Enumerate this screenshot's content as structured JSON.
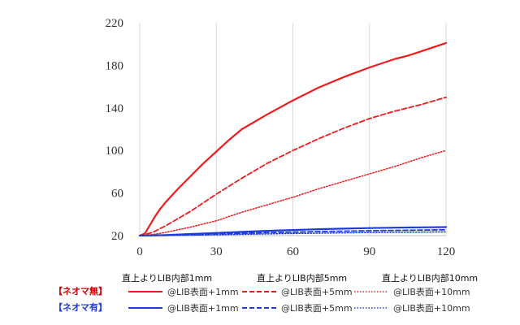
{
  "chart_data": {
    "type": "line",
    "xlim": [
      0,
      120
    ],
    "ylim": [
      20,
      220
    ],
    "xticks": [
      "0",
      "30",
      "60",
      "90",
      "120"
    ],
    "yticks": [
      "20",
      "60",
      "100",
      "140",
      "180",
      "220"
    ],
    "grid": "vertical",
    "series": [
      {
        "name": "@LIB表面+1mm",
        "group": "【ネオマ無】",
        "color": "#ee1c1c",
        "dash": "solid",
        "width": 2.2,
        "x": [
          0,
          2,
          4,
          6,
          8,
          10,
          15,
          20,
          25,
          30,
          35,
          40,
          50,
          60,
          70,
          80,
          90,
          100,
          105,
          110,
          120
        ],
        "y": [
          20,
          22,
          30,
          38,
          45,
          51,
          64,
          76,
          88,
          99,
          110,
          120,
          134,
          147,
          159,
          169,
          178,
          186,
          189,
          193,
          201
        ]
      },
      {
        "name": "@LIB表面+5mm",
        "group": "【ネオマ無】",
        "color": "#ee1c1c",
        "dash": "dashed",
        "width": 1.8,
        "x": [
          0,
          5,
          10,
          15,
          20,
          25,
          30,
          40,
          50,
          60,
          70,
          80,
          90,
          100,
          110,
          120
        ],
        "y": [
          20,
          23,
          29,
          36,
          43,
          51,
          59,
          74,
          88,
          100,
          111,
          121,
          130,
          137,
          143,
          150
        ]
      },
      {
        "name": "@LIB表面+10mm",
        "group": "【ネオマ無】",
        "color": "#ee1c1c",
        "dash": "dotted",
        "width": 1.5,
        "x": [
          0,
          5,
          10,
          20,
          30,
          40,
          50,
          60,
          70,
          80,
          90,
          100,
          110,
          120
        ],
        "y": [
          20,
          21,
          23,
          28,
          34,
          42,
          49,
          56,
          64,
          71,
          78,
          85,
          93,
          100
        ]
      },
      {
        "name": "@LIB表面+1mm",
        "group": "【ネオマ有】",
        "color": "#1f3dd6",
        "dash": "solid",
        "width": 2.2,
        "x": [
          0,
          10,
          20,
          30,
          40,
          50,
          60,
          70,
          80,
          90,
          100,
          110,
          120
        ],
        "y": [
          20,
          20.5,
          21.5,
          22.5,
          23.5,
          24.5,
          25.3,
          26,
          26.6,
          27.1,
          27.5,
          27.8,
          28
        ]
      },
      {
        "name": "@LIB表面+5mm",
        "group": "【ネオマ有】",
        "color": "#1f3dd6",
        "dash": "dashed",
        "width": 1.8,
        "x": [
          0,
          10,
          20,
          30,
          40,
          50,
          60,
          70,
          80,
          90,
          100,
          110,
          120
        ],
        "y": [
          20,
          20.2,
          20.8,
          21.5,
          22.2,
          22.8,
          23.3,
          23.8,
          24.2,
          24.6,
          24.9,
          25.2,
          25.5
        ]
      },
      {
        "name": "@LIB表面+10mm",
        "group": "【ネオマ有】",
        "color": "#1f3dd6",
        "dash": "dotted",
        "width": 1.5,
        "x": [
          0,
          10,
          20,
          30,
          40,
          50,
          60,
          70,
          80,
          90,
          100,
          110,
          120
        ],
        "y": [
          20,
          20.1,
          20.4,
          20.8,
          21.2,
          21.6,
          22,
          22.3,
          22.6,
          22.9,
          23.1,
          23.3,
          23.5
        ]
      }
    ]
  },
  "group_labels": [
    "直上よりLIB内部1mm",
    "直上よりLIB内部5mm",
    "直上よりLIB内部10mm"
  ],
  "legend": {
    "rows": [
      {
        "group": "【ネオマ無】",
        "color": "#cc0000",
        "items": [
          {
            "label": "@LIB表面+1mm",
            "color": "#ee1c1c",
            "dash": "solid"
          },
          {
            "label": "@LIB表面+5mm",
            "color": "#ee1c1c",
            "dash": "dashed"
          },
          {
            "label": "@LIB表面+10mm",
            "color": "#ee1c1c",
            "dash": "dotted"
          }
        ]
      },
      {
        "group": "【ネオマ有】",
        "color": "#1f3dd6",
        "items": [
          {
            "label": "@LIB表面+1mm",
            "color": "#1f3dd6",
            "dash": "solid"
          },
          {
            "label": "@LIB表面+5mm",
            "color": "#1f3dd6",
            "dash": "dashed"
          },
          {
            "label": "@LIB表面+10mm",
            "color": "#1f3dd6",
            "dash": "dotted"
          }
        ]
      }
    ]
  }
}
